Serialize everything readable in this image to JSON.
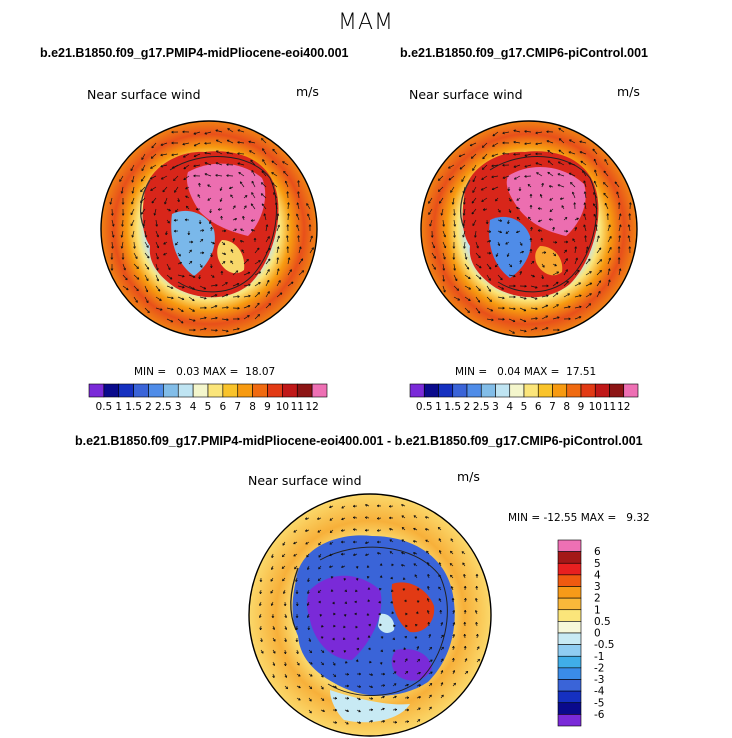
{
  "page": {
    "title": "MAM"
  },
  "panels": [
    {
      "id": "midpliocene",
      "title": "b.e21.B1850.f09_g17.PMIP4-midPliocene-eoi400.001",
      "variable": "Near surface wind",
      "units": "m/s",
      "min_label": "MIN =",
      "min_value": "0.03",
      "max_label": "MAX =",
      "max_value": "18.07"
    },
    {
      "id": "picontrol",
      "title": "b.e21.B1850.f09_g17.CMIP6-piControl.001",
      "variable": "Near surface wind",
      "units": "m/s",
      "min_label": "MIN =",
      "min_value": "0.04",
      "max_label": "MAX =",
      "max_value": "17.51"
    },
    {
      "id": "difference",
      "title": "b.e21.B1850.f09_g17.PMIP4-midPliocene-eoi400.001 - b.e21.B1850.f09_g17.CMIP6-piControl.001",
      "variable": "Near surface wind",
      "units": "m/s",
      "min_label": "MIN =",
      "min_value": "-12.55",
      "max_label": "MAX =",
      "max_value": "9.32"
    }
  ],
  "colorbars": {
    "abs": {
      "labels": [
        "0.5",
        "1",
        "1.5",
        "2",
        "2.5",
        "3",
        "4",
        "5",
        "6",
        "7",
        "8",
        "9",
        "10",
        "11",
        "12"
      ],
      "colors": [
        "#7a2ad8",
        "#0a0a8c",
        "#1530c0",
        "#3a64d8",
        "#4f8ce8",
        "#82bde8",
        "#bfe4f2",
        "#f4f6cc",
        "#fbe57a",
        "#f9c32a",
        "#f79a10",
        "#f06a10",
        "#e23a14",
        "#c01818",
        "#8c1414",
        "#ee70b4"
      ]
    },
    "diff": {
      "labels": [
        "6",
        "5",
        "4",
        "3",
        "2",
        "1",
        "0.5",
        "0",
        "-0.5",
        "-1",
        "-2",
        "-3",
        "-4",
        "-5",
        "-6"
      ],
      "colors": [
        "#ee70b4",
        "#a41818",
        "#e82020",
        "#f05a10",
        "#f79a18",
        "#fab83a",
        "#fbe57a",
        "#f6f8da",
        "#c8eaf4",
        "#90cdf2",
        "#40aee8",
        "#3a8ce8",
        "#3a64d8",
        "#1530c0",
        "#0a0a8c",
        "#7a2ad8"
      ]
    }
  },
  "chart_data": [
    {
      "type": "heatmap",
      "projection": "south-polar-stereographic",
      "title": "b.e21.B1850.f09_g17.PMIP4-midPliocene-eoi400.001",
      "field": "Near surface wind",
      "units": "m/s",
      "min": 0.03,
      "max": 18.07,
      "levels": [
        0.5,
        1,
        1.5,
        2,
        2.5,
        3,
        4,
        5,
        6,
        7,
        8,
        9,
        10,
        11,
        12
      ],
      "overlay": "wind vectors"
    },
    {
      "type": "heatmap",
      "projection": "south-polar-stereographic",
      "title": "b.e21.B1850.f09_g17.CMIP6-piControl.001",
      "field": "Near surface wind",
      "units": "m/s",
      "min": 0.04,
      "max": 17.51,
      "levels": [
        0.5,
        1,
        1.5,
        2,
        2.5,
        3,
        4,
        5,
        6,
        7,
        8,
        9,
        10,
        11,
        12
      ],
      "overlay": "wind vectors"
    },
    {
      "type": "heatmap",
      "projection": "south-polar-stereographic",
      "title": "b.e21.B1850.f09_g17.PMIP4-midPliocene-eoi400.001 - b.e21.B1850.f09_g17.CMIP6-piControl.001",
      "field": "Near surface wind",
      "units": "m/s",
      "min": -12.55,
      "max": 9.32,
      "levels": [
        -6,
        -5,
        -4,
        -3,
        -2,
        -1,
        -0.5,
        0,
        0.5,
        1,
        2,
        3,
        4,
        5,
        6
      ],
      "overlay": "wind vectors"
    }
  ]
}
